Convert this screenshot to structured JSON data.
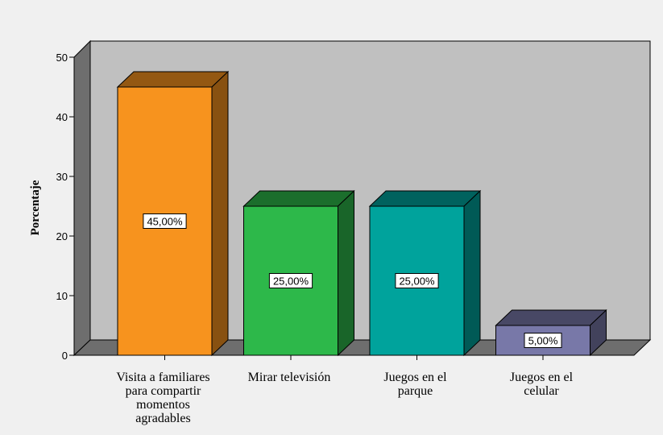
{
  "chart_data": {
    "type": "bar",
    "style": "3d",
    "categories": [
      [
        "Visita a familiares",
        "para compartir",
        "momentos",
        "agradables"
      ],
      [
        "Mirar televisión"
      ],
      [
        "Juegos en el",
        "parque"
      ],
      [
        "Juegos en el",
        "celular"
      ]
    ],
    "values": [
      45,
      25,
      25,
      5
    ],
    "data_labels": [
      "45,00%",
      "25,00%",
      "25,00%",
      "5,00%"
    ],
    "colors": [
      "#f7931e",
      "#2db84a",
      "#00a39c",
      "#7878a8"
    ],
    "ylabel": "Porcentaje",
    "xlabel": "",
    "ylim": [
      0,
      50
    ],
    "yticks": [
      0,
      10,
      20,
      30,
      40,
      50
    ],
    "grid": false,
    "legend": "none",
    "background_color": "#c0c0c0"
  }
}
